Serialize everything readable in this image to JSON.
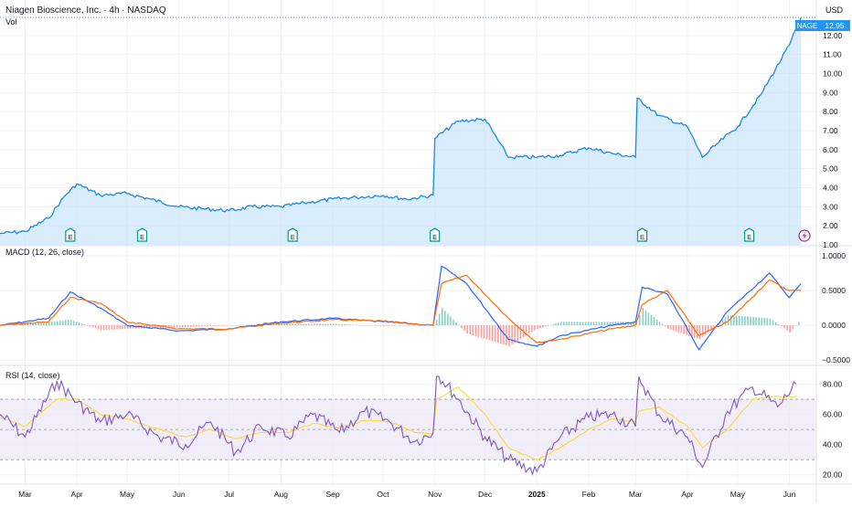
{
  "header": {
    "symbol_title": "Niagen Bioscience, Inc. · 4h · NASDAQ",
    "volume_label": "Vol",
    "currency": "USD"
  },
  "price_badge": {
    "ticker": "NAGE",
    "value": "12.95"
  },
  "colors": {
    "price_line": "#2962ff",
    "price_line_alt": "#1e88e5",
    "area_fill": "#bbdefb",
    "macd_line": "#2962ff",
    "signal_line": "#ff6d00",
    "hist_pos": "#26a69a",
    "hist_neg": "#ef5350",
    "rsi_line": "#7e57c2",
    "rsi_ma": "#fdd835",
    "rsi_band": "#ede7f6",
    "earnings_marker": "#089981",
    "grid": "#f0f3fa",
    "axis_text": "#131722",
    "badge_bg": "#2196f3",
    "lightning_marker": "#9c27b0"
  },
  "x_axis": {
    "labels": [
      "Mar",
      "Apr",
      "May",
      "Jun",
      "Jul",
      "Aug",
      "Sep",
      "Oct",
      "Nov",
      "Dec",
      "2025",
      "Feb",
      "Mar",
      "Apr",
      "May",
      "Jun"
    ]
  },
  "earnings_markers": {
    "label": "E",
    "months": [
      "Apr",
      "May",
      "Aug",
      "Nov",
      "Mar",
      "May"
    ]
  },
  "chart_data": [
    {
      "type": "area",
      "name": "price",
      "x": [
        "2024-02-15",
        "2024-03-01",
        "2024-03-15",
        "2024-03-25",
        "2024-04-01",
        "2024-04-15",
        "2024-05-01",
        "2024-05-15",
        "2024-06-01",
        "2024-06-15",
        "2024-07-01",
        "2024-07-15",
        "2024-08-01",
        "2024-08-15",
        "2024-09-01",
        "2024-09-15",
        "2024-10-01",
        "2024-10-15",
        "2024-10-31",
        "2024-11-01",
        "2024-11-15",
        "2024-12-01",
        "2024-12-15",
        "2025-01-01",
        "2025-01-15",
        "2025-02-01",
        "2025-02-15",
        "2025-03-01",
        "2025-03-02",
        "2025-03-15",
        "2025-04-01",
        "2025-04-10",
        "2025-04-20",
        "2025-05-01",
        "2025-05-15",
        "2025-06-01",
        "2025-06-08"
      ],
      "values": [
        1.6,
        1.7,
        2.4,
        3.6,
        4.2,
        3.6,
        3.7,
        3.4,
        3.0,
        2.9,
        2.8,
        3.0,
        3.0,
        3.2,
        3.4,
        3.5,
        3.6,
        3.4,
        3.6,
        6.6,
        7.5,
        7.6,
        5.6,
        5.6,
        5.7,
        6.1,
        5.8,
        5.6,
        8.7,
        7.8,
        7.2,
        5.6,
        6.4,
        7.2,
        8.9,
        11.5,
        12.95
      ],
      "y_ticks": [
        "12.00",
        "11.00",
        "10.00",
        "9.00",
        "8.00",
        "7.00",
        "6.00",
        "5.00",
        "4.00",
        "3.00",
        "2.00",
        "1.00"
      ],
      "ylim": [
        1.0,
        13.0
      ]
    },
    {
      "type": "line",
      "title": "MACD (12, 26, close)",
      "x": [
        "2024-02-15",
        "2024-03-15",
        "2024-03-28",
        "2024-04-15",
        "2024-05-01",
        "2024-06-01",
        "2024-07-01",
        "2024-08-01",
        "2024-09-01",
        "2024-10-01",
        "2024-10-31",
        "2024-11-05",
        "2024-11-20",
        "2024-12-15",
        "2025-01-01",
        "2025-01-15",
        "2025-02-15",
        "2025-03-01",
        "2025-03-05",
        "2025-03-20",
        "2025-04-08",
        "2025-04-25",
        "2025-05-20",
        "2025-06-01",
        "2025-06-08"
      ],
      "series": [
        {
          "name": "MACD",
          "values": [
            0.0,
            0.1,
            0.48,
            0.25,
            0.0,
            -0.08,
            -0.05,
            0.05,
            0.1,
            0.05,
            0.0,
            0.85,
            0.6,
            -0.2,
            -0.3,
            -0.15,
            0.0,
            0.05,
            0.55,
            0.45,
            -0.35,
            0.2,
            0.75,
            0.4,
            0.6
          ]
        },
        {
          "name": "Signal",
          "values": [
            0.0,
            0.05,
            0.4,
            0.32,
            0.05,
            -0.05,
            -0.05,
            0.03,
            0.08,
            0.06,
            0.0,
            0.6,
            0.72,
            0.1,
            -0.25,
            -0.2,
            -0.05,
            0.0,
            0.3,
            0.5,
            -0.15,
            0.05,
            0.65,
            0.5,
            0.5
          ]
        }
      ],
      "histogram": [
        0.0,
        0.05,
        0.08,
        -0.07,
        -0.05,
        -0.03,
        0.0,
        0.02,
        0.02,
        -0.01,
        0.0,
        0.25,
        -0.12,
        -0.3,
        -0.05,
        0.05,
        0.05,
        0.05,
        0.25,
        -0.05,
        -0.2,
        0.15,
        0.1,
        -0.1,
        0.1
      ],
      "y_ticks": [
        "1.0000",
        "0.5000",
        "0.0000",
        "−0.5000"
      ],
      "ylim": [
        -0.55,
        1.0
      ]
    },
    {
      "type": "line",
      "title": "RSI (14, close)",
      "x": [
        "2024-02-15",
        "2024-03-01",
        "2024-03-20",
        "2024-04-01",
        "2024-04-15",
        "2024-05-01",
        "2024-05-20",
        "2024-06-05",
        "2024-06-20",
        "2024-07-05",
        "2024-07-20",
        "2024-08-05",
        "2024-08-20",
        "2024-09-05",
        "2024-09-20",
        "2024-10-05",
        "2024-10-20",
        "2024-10-31",
        "2024-11-02",
        "2024-11-15",
        "2024-12-01",
        "2024-12-15",
        "2025-01-01",
        "2025-01-15",
        "2025-02-01",
        "2025-02-15",
        "2025-03-01",
        "2025-03-03",
        "2025-03-15",
        "2025-04-01",
        "2025-04-10",
        "2025-04-25",
        "2025-05-10",
        "2025-05-25",
        "2025-06-05"
      ],
      "series": [
        {
          "name": "RSI",
          "values": [
            60,
            45,
            82,
            68,
            55,
            60,
            45,
            40,
            55,
            35,
            52,
            45,
            60,
            48,
            62,
            55,
            42,
            48,
            88,
            70,
            45,
            30,
            22,
            45,
            58,
            60,
            52,
            85,
            60,
            45,
            25,
            62,
            78,
            65,
            80
          ]
        },
        {
          "name": "RSI MA",
          "values": [
            58,
            52,
            70,
            70,
            60,
            57,
            50,
            45,
            50,
            44,
            48,
            48,
            54,
            51,
            56,
            55,
            48,
            47,
            70,
            78,
            60,
            38,
            30,
            38,
            50,
            57,
            55,
            62,
            65,
            52,
            38,
            50,
            70,
            72,
            72
          ]
        }
      ],
      "bands": [
        30,
        50,
        70
      ],
      "y_ticks": [
        "80.00",
        "60.00",
        "40.00",
        "20.00"
      ],
      "ylim": [
        15,
        90
      ]
    }
  ]
}
